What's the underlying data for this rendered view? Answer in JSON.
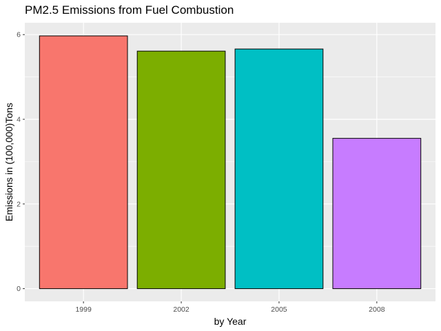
{
  "chart_data": {
    "type": "bar",
    "title": "PM2.5 Emissions from Fuel Combustion",
    "xlabel": "by Year",
    "ylabel": "Emissions in (100,000)Tons",
    "categories": [
      "1999",
      "2002",
      "2005",
      "2008"
    ],
    "values": [
      5.97,
      5.61,
      5.66,
      3.55
    ],
    "colors": [
      "#F8766D",
      "#7CAE00",
      "#00BFC4",
      "#C77CFF"
    ],
    "ylim": [
      -0.3,
      6.28
    ],
    "yticks": [
      0,
      2,
      4,
      6
    ],
    "grid": true,
    "panel_background": "#EBEBEB",
    "legend": "none"
  }
}
